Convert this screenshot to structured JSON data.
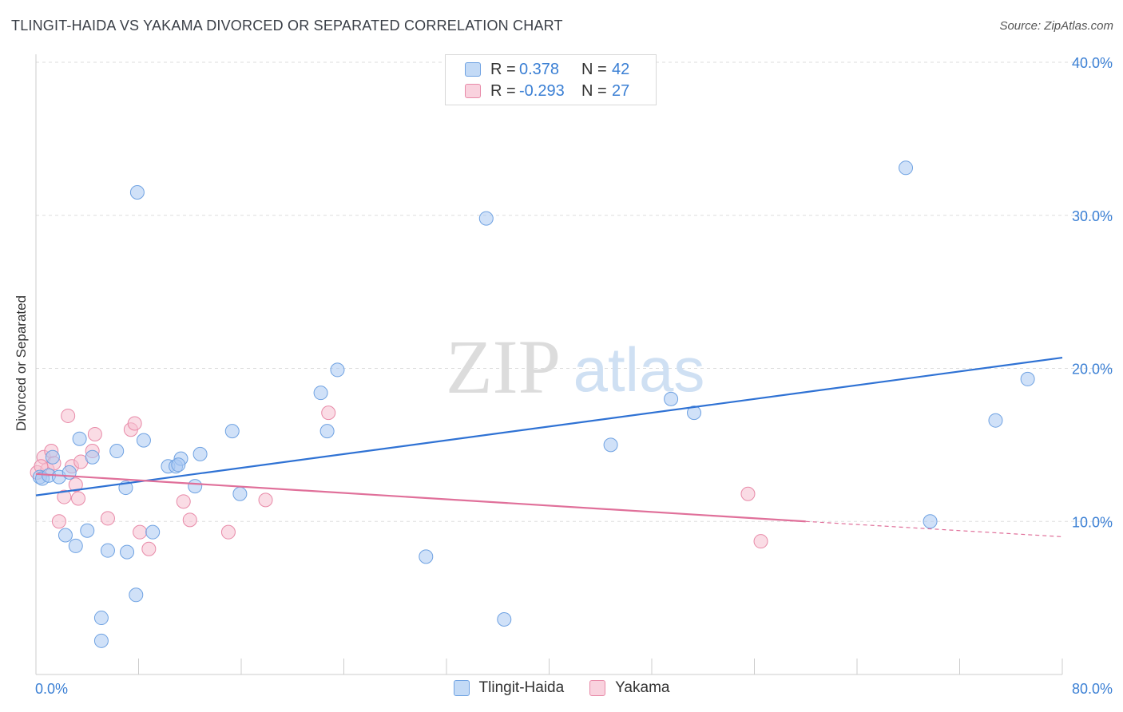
{
  "title": "TLINGIT-HAIDA VS YAKAMA DIVORCED OR SEPARATED CORRELATION CHART",
  "source": "Source: ZipAtlas.com",
  "watermark": {
    "zip": "ZIP",
    "atlas": "atlas"
  },
  "colors": {
    "blue_fill": "#a9c9f2",
    "blue_stroke": "#6fa2e2",
    "blue_line": "#2f72d4",
    "pink_fill": "#f6bfd0",
    "pink_stroke": "#e88aa8",
    "pink_line": "#e0709a",
    "grid": "#dddddd",
    "tick_label": "#3a7fd4"
  },
  "legend": {
    "rows": [
      {
        "r_label": "R =",
        "r_value": "0.378",
        "n_label": "N =",
        "n_value": "42"
      },
      {
        "r_label": "R =",
        "r_value": "-0.293",
        "n_label": "N =",
        "n_value": "27"
      }
    ]
  },
  "bottom_legend": [
    "Tlingit-Haida",
    "Yakama"
  ],
  "chart_data": {
    "type": "scatter",
    "title": "TLINGIT-HAIDA VS YAKAMA DIVORCED OR SEPARATED CORRELATION CHART",
    "xlabel": "",
    "ylabel": "Divorced or Separated",
    "xlim": [
      0,
      80
    ],
    "ylim": [
      0,
      40
    ],
    "x_tick_labels": [
      "0.0%",
      "80.0%"
    ],
    "y_ticks": [
      10,
      20,
      30,
      40
    ],
    "y_tick_labels": [
      "10.0%",
      "20.0%",
      "30.0%",
      "40.0%"
    ],
    "grid": true,
    "legend_position": "top-center",
    "series": [
      {
        "name": "Tlingit-Haida",
        "points": [
          [
            0.3,
            12.9
          ],
          [
            0.5,
            12.8
          ],
          [
            1.0,
            13.0
          ],
          [
            1.3,
            14.2
          ],
          [
            1.8,
            12.9
          ],
          [
            2.3,
            9.1
          ],
          [
            2.6,
            13.2
          ],
          [
            3.1,
            8.4
          ],
          [
            3.4,
            15.4
          ],
          [
            4.0,
            9.4
          ],
          [
            4.4,
            14.2
          ],
          [
            5.1,
            3.7
          ],
          [
            5.6,
            8.1
          ],
          [
            6.3,
            14.6
          ],
          [
            7.0,
            12.2
          ],
          [
            7.8,
            5.2
          ],
          [
            7.9,
            31.5
          ],
          [
            8.4,
            15.3
          ],
          [
            9.1,
            9.3
          ],
          [
            10.3,
            13.6
          ],
          [
            10.9,
            13.6
          ],
          [
            11.3,
            14.1
          ],
          [
            11.1,
            13.7
          ],
          [
            12.4,
            12.3
          ],
          [
            12.8,
            14.4
          ],
          [
            15.3,
            15.9
          ],
          [
            15.9,
            11.8
          ],
          [
            22.2,
            18.4
          ],
          [
            22.7,
            15.9
          ],
          [
            23.5,
            19.9
          ],
          [
            30.4,
            7.7
          ],
          [
            35.1,
            29.8
          ],
          [
            36.5,
            3.6
          ],
          [
            44.8,
            15.0
          ],
          [
            49.5,
            18.0
          ],
          [
            51.3,
            17.1
          ],
          [
            67.8,
            33.1
          ],
          [
            69.7,
            10.0
          ],
          [
            74.8,
            16.6
          ],
          [
            77.3,
            19.3
          ],
          [
            5.1,
            2.2
          ],
          [
            7.1,
            8.0
          ]
        ],
        "trend": {
          "x": [
            0,
            80
          ],
          "y": [
            11.7,
            20.7
          ]
        }
      },
      {
        "name": "Yakama",
        "points": [
          [
            0.1,
            13.2
          ],
          [
            0.6,
            14.2
          ],
          [
            0.9,
            13.4
          ],
          [
            1.2,
            14.6
          ],
          [
            1.4,
            13.8
          ],
          [
            1.8,
            10.0
          ],
          [
            2.2,
            11.6
          ],
          [
            2.5,
            16.9
          ],
          [
            2.8,
            13.6
          ],
          [
            3.1,
            12.4
          ],
          [
            3.3,
            11.5
          ],
          [
            3.5,
            13.9
          ],
          [
            4.4,
            14.6
          ],
          [
            4.6,
            15.7
          ],
          [
            5.6,
            10.2
          ],
          [
            7.4,
            16.0
          ],
          [
            7.7,
            16.4
          ],
          [
            8.1,
            9.3
          ],
          [
            8.8,
            8.2
          ],
          [
            11.5,
            11.3
          ],
          [
            12.0,
            10.1
          ],
          [
            15.0,
            9.3
          ],
          [
            17.9,
            11.4
          ],
          [
            22.8,
            17.1
          ],
          [
            55.5,
            11.8
          ],
          [
            56.5,
            8.7
          ],
          [
            0.4,
            13.6
          ]
        ],
        "trend": {
          "x": [
            0,
            60
          ],
          "y": [
            13.1,
            10.0
          ]
        },
        "trend_extension": {
          "x": [
            60,
            80
          ],
          "y": [
            10.0,
            9.0
          ]
        }
      }
    ]
  }
}
